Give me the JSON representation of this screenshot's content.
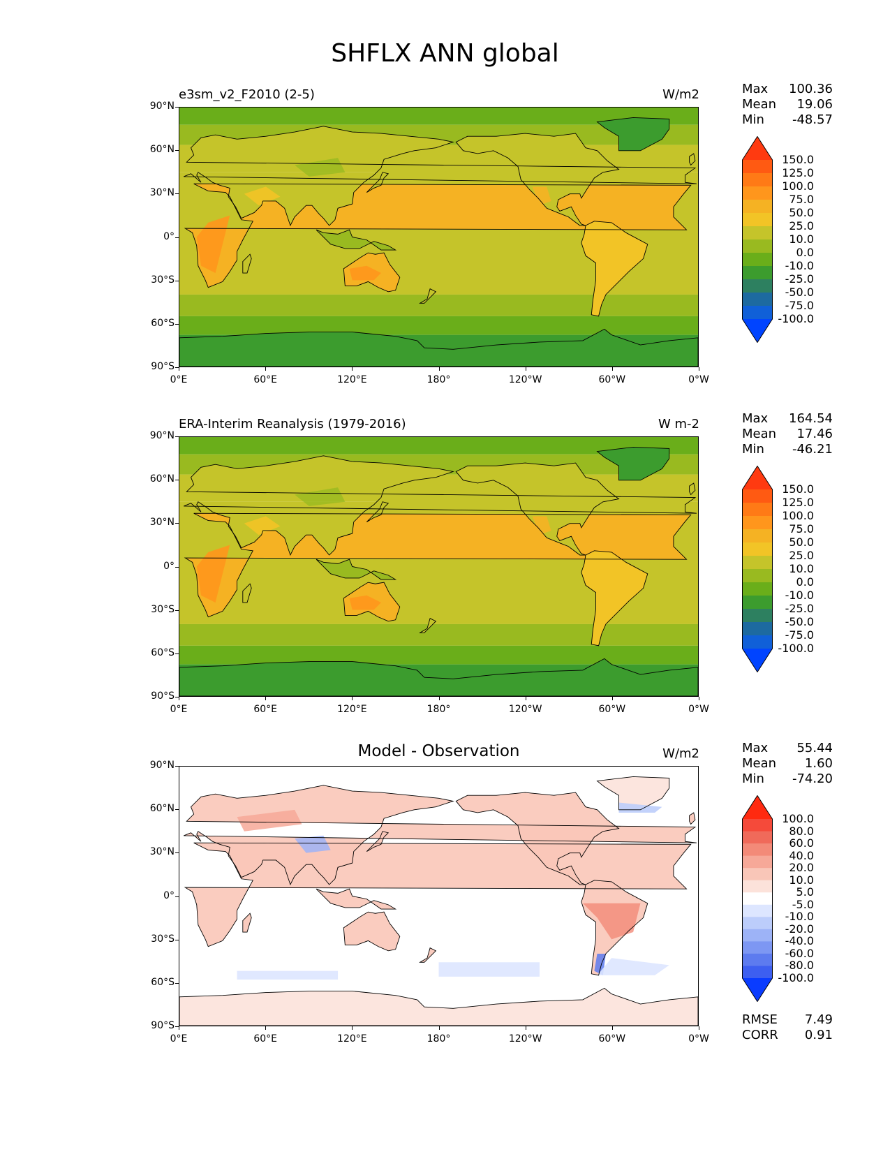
{
  "title": "SHFLX ANN global",
  "lat_labels": [
    "90°N",
    "60°N",
    "30°N",
    "0°",
    "30°S",
    "60°S",
    "90°S"
  ],
  "lon_labels": [
    "0°E",
    "60°E",
    "120°E",
    "180°",
    "120°W",
    "60°W",
    "0°W"
  ],
  "panels": [
    {
      "title_left": "e3sm_v2_F2010 (2-5)",
      "title_center": "",
      "units": "W/m2",
      "stats": [
        [
          "Max",
          "100.36"
        ],
        [
          "Mean",
          "19.06"
        ],
        [
          "Min",
          "-48.57"
        ]
      ],
      "colorbar_labels": [
        "150.0",
        "125.0",
        "100.0",
        "75.0",
        "50.0",
        "25.0",
        "10.0",
        "0.0",
        "-10.0",
        "-25.0",
        "-50.0",
        "-75.0",
        "-100.0"
      ],
      "colorbar_colors": [
        "#ff3a10",
        "#ff5a12",
        "#ff7a16",
        "#ff961c",
        "#f5b223",
        "#f2c426",
        "#c5c42a",
        "#99ba20",
        "#6aae1a",
        "#3c9c2e",
        "#2d8060",
        "#1d6aa0",
        "#1060d8",
        "#0044ff"
      ],
      "palette": "abs"
    },
    {
      "title_left": "ERA-Interim Reanalysis (1979-2016)",
      "title_center": "",
      "units": "W m-2",
      "stats": [
        [
          "Max",
          "164.54"
        ],
        [
          "Mean",
          "17.46"
        ],
        [
          "Min",
          "-46.21"
        ]
      ],
      "colorbar_labels": [
        "150.0",
        "125.0",
        "100.0",
        "75.0",
        "50.0",
        "25.0",
        "10.0",
        "0.0",
        "-10.0",
        "-25.0",
        "-50.0",
        "-75.0",
        "-100.0"
      ],
      "colorbar_colors": [
        "#ff3a10",
        "#ff5a12",
        "#ff7a16",
        "#ff961c",
        "#f5b223",
        "#f2c426",
        "#c5c42a",
        "#99ba20",
        "#6aae1a",
        "#3c9c2e",
        "#2d8060",
        "#1d6aa0",
        "#1060d8",
        "#0044ff"
      ],
      "palette": "abs"
    },
    {
      "title_left": "",
      "title_center": "Model - Observation",
      "units": "W/m2",
      "stats": [
        [
          "Max",
          "55.44"
        ],
        [
          "Mean",
          "1.60"
        ],
        [
          "Min",
          "-74.20"
        ]
      ],
      "colorbar_labels": [
        "100.0",
        "80.0",
        "60.0",
        "40.0",
        "20.0",
        "10.0",
        "5.0",
        "-5.0",
        "-10.0",
        "-20.0",
        "-40.0",
        "-60.0",
        "-80.0",
        "-100.0"
      ],
      "colorbar_colors": [
        "#ff2a10",
        "#f54a3a",
        "#f06a5a",
        "#f38a78",
        "#f6a898",
        "#f9c6b8",
        "#fce2da",
        "#ffffff",
        "#dde6ff",
        "#bccdfb",
        "#9db3f7",
        "#7d97f3",
        "#5d7bef",
        "#3d5ff0",
        "#0a3cff"
      ],
      "palette": "diff",
      "metrics": [
        [
          "RMSE",
          "7.49"
        ],
        [
          "CORR",
          "0.91"
        ]
      ]
    }
  ]
}
